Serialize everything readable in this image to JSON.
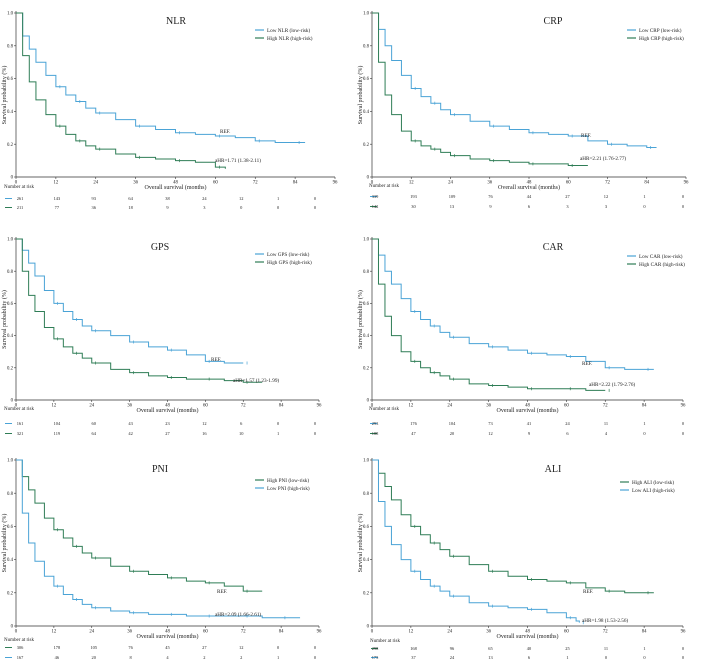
{
  "colors": {
    "blue": "#4aa3d6",
    "green": "#2f7d56",
    "axis": "#333333"
  },
  "common": {
    "xlabel": "Overall survival (months)",
    "ylabel": "Survival probability (%)",
    "number_at_risk": "Number at risk",
    "ref_label": "REF."
  },
  "chart_data": [
    {
      "type": "line",
      "title": "NLR",
      "xlim": [
        0,
        96
      ],
      "ylim": [
        0,
        1.0
      ],
      "x_ticks": [
        "0",
        "12",
        "24",
        "36",
        "48",
        "60",
        "72",
        "84",
        "96"
      ],
      "y_ticks": [
        "0",
        "0.2",
        "0.4",
        "0.6",
        "0.8",
        "1.0"
      ],
      "series": [
        {
          "name": "Low NLR (low-risk)",
          "color": "blue",
          "ref": true,
          "x": [
            0,
            2,
            4,
            6,
            9,
            12,
            15,
            18,
            21,
            24,
            30,
            36,
            42,
            48,
            54,
            60,
            66,
            72,
            78,
            84,
            87
          ],
          "y": [
            1.0,
            0.86,
            0.78,
            0.7,
            0.62,
            0.55,
            0.5,
            0.46,
            0.42,
            0.39,
            0.35,
            0.31,
            0.29,
            0.27,
            0.26,
            0.25,
            0.24,
            0.22,
            0.21,
            0.21,
            0.21
          ],
          "at_risk": [
            "261",
            "143",
            "93",
            "64",
            "38",
            "24",
            "12",
            "1",
            "0"
          ]
        },
        {
          "name": "High NLR (high-risk)",
          "color": "green",
          "x": [
            0,
            2,
            4,
            6,
            9,
            12,
            15,
            18,
            21,
            24,
            30,
            36,
            42,
            48,
            54,
            60,
            63
          ],
          "y": [
            1.0,
            0.74,
            0.58,
            0.47,
            0.38,
            0.31,
            0.26,
            0.22,
            0.19,
            0.17,
            0.14,
            0.12,
            0.11,
            0.1,
            0.09,
            0.06,
            0.05
          ],
          "hr": "aHR=1.71 (1.38-2.11)",
          "at_risk": [
            "211",
            "77",
            "36",
            "18",
            "9",
            "3",
            "0",
            "0",
            "0"
          ]
        }
      ]
    },
    {
      "type": "line",
      "title": "CRP",
      "xlim": [
        0,
        96
      ],
      "ylim": [
        0,
        1.0
      ],
      "x_ticks": [
        "0",
        "12",
        "24",
        "36",
        "48",
        "60",
        "72",
        "84",
        "96"
      ],
      "y_ticks": [
        "0",
        "0.2",
        "0.4",
        "0.6",
        "0.8",
        "1.0"
      ],
      "series": [
        {
          "name": "Low CRP (low-risk)",
          "color": "blue",
          "ref": true,
          "x": [
            0,
            2,
            4,
            6,
            9,
            12,
            15,
            18,
            21,
            24,
            30,
            36,
            42,
            48,
            54,
            60,
            66,
            72,
            78,
            84,
            87
          ],
          "y": [
            1.0,
            0.9,
            0.8,
            0.71,
            0.62,
            0.54,
            0.49,
            0.45,
            0.41,
            0.38,
            0.34,
            0.31,
            0.29,
            0.27,
            0.26,
            0.25,
            0.22,
            0.2,
            0.19,
            0.18,
            0.18
          ],
          "at_risk": [
            "339",
            "193",
            "109",
            "76",
            "44",
            "27",
            "12",
            "1",
            "0"
          ]
        },
        {
          "name": "High CRP (high-risk)",
          "color": "green",
          "x": [
            0,
            2,
            4,
            6,
            9,
            12,
            15,
            18,
            21,
            24,
            30,
            36,
            42,
            48,
            54,
            60,
            66
          ],
          "y": [
            1.0,
            0.7,
            0.5,
            0.38,
            0.28,
            0.22,
            0.19,
            0.17,
            0.15,
            0.13,
            0.11,
            0.1,
            0.09,
            0.08,
            0.08,
            0.07,
            0.07
          ],
          "hr": "aHR=2.21 (1.76-2.77)",
          "at_risk": [
            "142",
            "30",
            "13",
            "9",
            "6",
            "3",
            "3",
            "0",
            "0"
          ]
        }
      ]
    },
    {
      "type": "line",
      "title": "GPS",
      "xlim": [
        0,
        96
      ],
      "ylim": [
        0,
        1.0
      ],
      "x_ticks": [
        "0",
        "12",
        "24",
        "36",
        "48",
        "60",
        "72",
        "84",
        "96"
      ],
      "y_ticks": [
        "0",
        "0.2",
        "0.4",
        "0.6",
        "0.8",
        "1.0"
      ],
      "series": [
        {
          "name": "Low GPS (low-risk)",
          "color": "blue",
          "ref": true,
          "x": [
            0,
            2,
            4,
            6,
            9,
            12,
            15,
            18,
            21,
            24,
            30,
            36,
            42,
            48,
            54,
            60,
            66,
            72
          ],
          "y": [
            1.0,
            0.93,
            0.85,
            0.77,
            0.68,
            0.6,
            0.55,
            0.5,
            0.46,
            0.43,
            0.4,
            0.36,
            0.33,
            0.31,
            0.28,
            0.24,
            0.23,
            0.23
          ],
          "at_risk": [
            "161",
            "104",
            "60",
            "43",
            "23",
            "12",
            "6",
            "0",
            "0"
          ]
        },
        {
          "name": "High GPS (high-risk)",
          "color": "green",
          "x": [
            0,
            2,
            4,
            6,
            9,
            12,
            15,
            18,
            21,
            24,
            30,
            36,
            42,
            48,
            54,
            60,
            66,
            72,
            78
          ],
          "y": [
            1.0,
            0.8,
            0.65,
            0.55,
            0.45,
            0.38,
            0.33,
            0.29,
            0.26,
            0.23,
            0.19,
            0.17,
            0.15,
            0.14,
            0.13,
            0.13,
            0.12,
            0.11,
            0.11
          ],
          "hr": "aHR=1.57 (1.23-1.99)",
          "at_risk": [
            "321",
            "119",
            "64",
            "42",
            "27",
            "16",
            "10",
            "1",
            "0"
          ]
        }
      ]
    },
    {
      "type": "line",
      "title": "CAR",
      "xlim": [
        0,
        96
      ],
      "ylim": [
        0,
        1.0
      ],
      "x_ticks": [
        "0",
        "12",
        "24",
        "36",
        "48",
        "60",
        "72",
        "84",
        "96"
      ],
      "y_ticks": [
        "0",
        "0.2",
        "0.4",
        "0.6",
        "0.8",
        "1.0"
      ],
      "series": [
        {
          "name": "Low CAR (low-risk)",
          "color": "blue",
          "ref": true,
          "x": [
            0,
            2,
            4,
            6,
            9,
            12,
            15,
            18,
            21,
            24,
            30,
            36,
            42,
            48,
            54,
            60,
            66,
            72,
            78,
            84,
            87
          ],
          "y": [
            1.0,
            0.9,
            0.8,
            0.72,
            0.63,
            0.55,
            0.5,
            0.46,
            0.42,
            0.39,
            0.35,
            0.33,
            0.31,
            0.29,
            0.28,
            0.27,
            0.24,
            0.2,
            0.19,
            0.19,
            0.19
          ],
          "at_risk": [
            "293",
            "176",
            "104",
            "73",
            "41",
            "24",
            "11",
            "1",
            "0"
          ]
        },
        {
          "name": "High CAR (high-risk)",
          "color": "green",
          "x": [
            0,
            2,
            4,
            6,
            9,
            12,
            15,
            18,
            21,
            24,
            30,
            36,
            42,
            48,
            54,
            60,
            66,
            72
          ],
          "y": [
            1.0,
            0.72,
            0.52,
            0.4,
            0.3,
            0.24,
            0.2,
            0.17,
            0.15,
            0.13,
            0.1,
            0.09,
            0.08,
            0.07,
            0.07,
            0.07,
            0.06,
            0.06
          ],
          "hr": "aHR=2.22 (1.79-2.76)",
          "at_risk": [
            "188",
            "47",
            "20",
            "12",
            "9",
            "6",
            "4",
            "0",
            "0"
          ]
        }
      ]
    },
    {
      "type": "line",
      "title": "PNI",
      "xlim": [
        0,
        96
      ],
      "ylim": [
        0,
        1.0
      ],
      "x_ticks": [
        "0",
        "12",
        "24",
        "36",
        "48",
        "60",
        "72",
        "84",
        "96"
      ],
      "y_ticks": [
        "0",
        "0.2",
        "0.4",
        "0.6",
        "0.8",
        "1.0"
      ],
      "series": [
        {
          "name": "High PNI (low-risk)",
          "color": "green",
          "ref": true,
          "x": [
            0,
            2,
            4,
            6,
            9,
            12,
            15,
            18,
            21,
            24,
            30,
            36,
            42,
            48,
            54,
            60,
            66,
            72,
            78
          ],
          "y": [
            1.0,
            0.9,
            0.82,
            0.74,
            0.65,
            0.58,
            0.53,
            0.48,
            0.44,
            0.41,
            0.36,
            0.33,
            0.31,
            0.29,
            0.27,
            0.26,
            0.24,
            0.21,
            0.21
          ],
          "at_risk": [
            "306",
            "178",
            "105",
            "76",
            "45",
            "27",
            "12",
            "0",
            "0"
          ]
        },
        {
          "name": "Low PNI (high-risk)",
          "color": "blue",
          "x": [
            0,
            2,
            4,
            6,
            9,
            12,
            15,
            18,
            21,
            24,
            30,
            36,
            42,
            48,
            54,
            60,
            66,
            72,
            78,
            84,
            90
          ],
          "y": [
            1.0,
            0.68,
            0.5,
            0.39,
            0.3,
            0.24,
            0.19,
            0.16,
            0.13,
            0.11,
            0.09,
            0.08,
            0.07,
            0.07,
            0.06,
            0.06,
            0.06,
            0.06,
            0.05,
            0.05,
            0.05
          ],
          "hr": "aHR=2.09 (1.66-2.61)",
          "at_risk": [
            "167",
            "46",
            "20",
            "8",
            "4",
            "2",
            "2",
            "1",
            "0"
          ]
        }
      ]
    },
    {
      "type": "line",
      "title": "ALI",
      "xlim": [
        0,
        96
      ],
      "ylim": [
        0,
        1.0
      ],
      "x_ticks": [
        "0",
        "12",
        "24",
        "36",
        "48",
        "60",
        "72",
        "84",
        "96"
      ],
      "y_ticks": [
        "0",
        "0.2",
        "0.4",
        "0.6",
        "0.8",
        "1.0"
      ],
      "series": [
        {
          "name": "High ALI (low-risk)",
          "color": "green",
          "ref": true,
          "x": [
            0,
            2,
            4,
            6,
            9,
            12,
            15,
            18,
            21,
            24,
            30,
            36,
            42,
            48,
            54,
            60,
            66,
            72,
            78,
            84,
            87
          ],
          "y": [
            1.0,
            0.92,
            0.84,
            0.76,
            0.67,
            0.6,
            0.55,
            0.5,
            0.46,
            0.42,
            0.37,
            0.33,
            0.3,
            0.28,
            0.27,
            0.26,
            0.23,
            0.21,
            0.2,
            0.2,
            0.2
          ],
          "at_risk": [
            "298",
            "168",
            "96",
            "65",
            "40",
            "25",
            "11",
            "1",
            "0"
          ]
        },
        {
          "name": "Low ALI (high-risk)",
          "color": "blue",
          "x": [
            0,
            2,
            4,
            6,
            9,
            12,
            15,
            18,
            21,
            24,
            30,
            36,
            42,
            48,
            54,
            60,
            63,
            64
          ],
          "y": [
            1.0,
            0.75,
            0.6,
            0.49,
            0.4,
            0.33,
            0.28,
            0.24,
            0.21,
            0.18,
            0.14,
            0.12,
            0.11,
            0.1,
            0.08,
            0.05,
            0.03,
            0.02
          ],
          "hr": "aHR=1.98 (1.53-2.56)",
          "at_risk": [
            "175",
            "37",
            "24",
            "13",
            "6",
            "1",
            "0",
            "0",
            "0"
          ]
        }
      ]
    }
  ]
}
